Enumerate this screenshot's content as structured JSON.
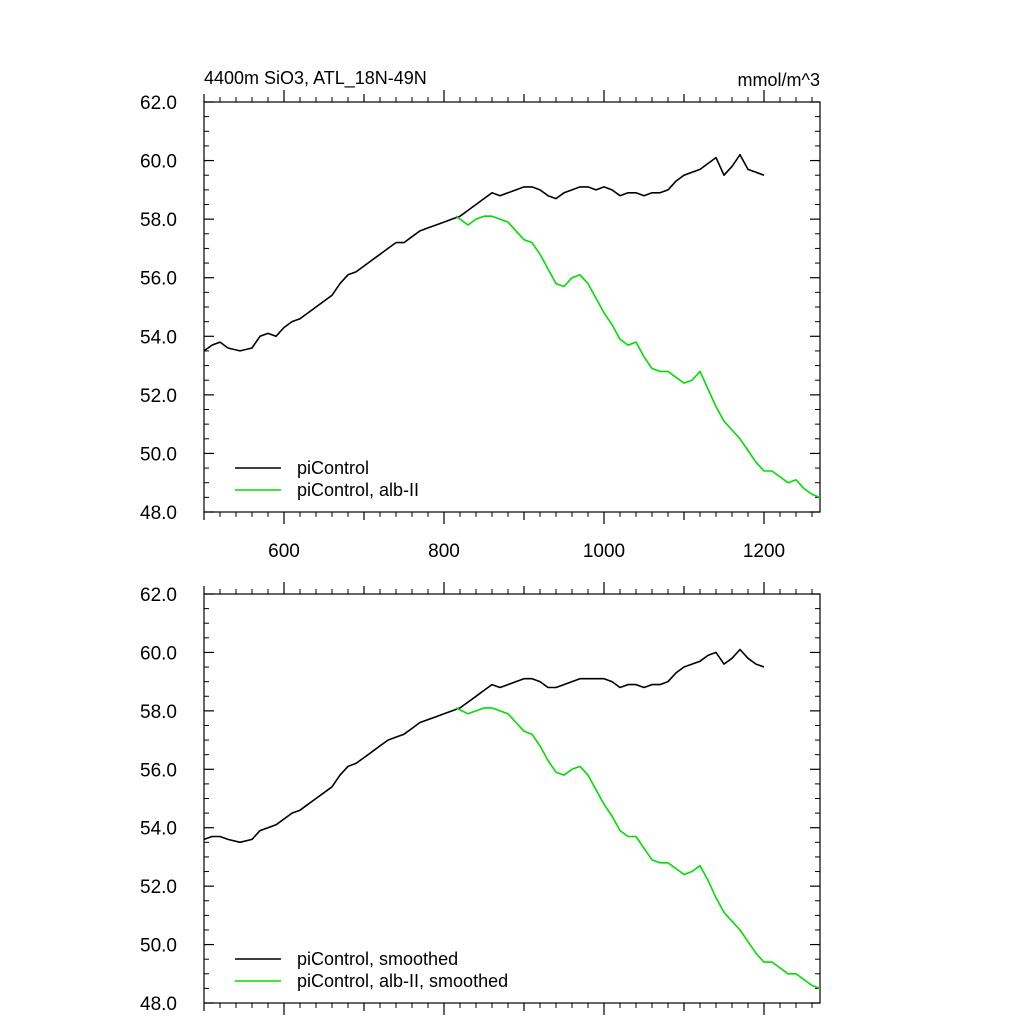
{
  "figure": {
    "title_left": "4400m SiO3, ATL_18N-49N",
    "title_right": "mmol/m^3"
  },
  "chart_data": [
    {
      "type": "line",
      "xlim": [
        500,
        1270
      ],
      "ylim": [
        48,
        62
      ],
      "x_ticks": [
        600,
        800,
        1000,
        1200
      ],
      "x_tick_labels": [
        "600",
        "800",
        "1000",
        "1200"
      ],
      "y_ticks": [
        48,
        50,
        52,
        54,
        56,
        58,
        60,
        62
      ],
      "y_tick_labels": [
        "48.0",
        "50.0",
        "52.0",
        "54.0",
        "56.0",
        "58.0",
        "60.0",
        "62.0"
      ],
      "legend_position": "bottom-left",
      "series": [
        {
          "name": "piControl",
          "color": "#000000",
          "x": [
            500,
            510,
            520,
            530,
            545,
            560,
            570,
            580,
            590,
            600,
            610,
            620,
            630,
            640,
            650,
            660,
            670,
            680,
            690,
            700,
            710,
            720,
            730,
            740,
            750,
            760,
            770,
            780,
            790,
            800,
            810,
            820,
            830,
            840,
            850,
            860,
            870,
            880,
            890,
            900,
            910,
            920,
            930,
            940,
            950,
            960,
            970,
            980,
            990,
            1000,
            1010,
            1020,
            1030,
            1040,
            1050,
            1060,
            1070,
            1080,
            1090,
            1100,
            1110,
            1120,
            1130,
            1140,
            1150,
            1160,
            1170,
            1180,
            1190,
            1200
          ],
          "values": [
            53.5,
            53.7,
            53.8,
            53.6,
            53.5,
            53.6,
            54.0,
            54.1,
            54.0,
            54.3,
            54.5,
            54.6,
            54.8,
            55.0,
            55.2,
            55.4,
            55.8,
            56.1,
            56.2,
            56.4,
            56.6,
            56.8,
            57.0,
            57.2,
            57.2,
            57.4,
            57.6,
            57.7,
            57.8,
            57.9,
            58.0,
            58.1,
            58.3,
            58.5,
            58.7,
            58.9,
            58.8,
            58.9,
            59.0,
            59.1,
            59.1,
            59.0,
            58.8,
            58.7,
            58.9,
            59.0,
            59.1,
            59.1,
            59.0,
            59.1,
            59.0,
            58.8,
            58.9,
            58.9,
            58.8,
            58.9,
            58.9,
            59.0,
            59.3,
            59.5,
            59.6,
            59.7,
            59.9,
            60.1,
            59.5,
            59.8,
            60.2,
            59.7,
            59.6,
            59.5
          ]
        },
        {
          "name": "piControl, alb-II",
          "color": "#00dd00",
          "x": [
            815,
            830,
            840,
            850,
            860,
            870,
            880,
            890,
            900,
            910,
            920,
            930,
            940,
            950,
            960,
            970,
            980,
            990,
            1000,
            1010,
            1020,
            1030,
            1040,
            1050,
            1060,
            1070,
            1080,
            1090,
            1100,
            1110,
            1120,
            1130,
            1140,
            1150,
            1160,
            1170,
            1180,
            1190,
            1200,
            1210,
            1220,
            1230,
            1240,
            1250,
            1260,
            1270
          ],
          "values": [
            58.1,
            57.8,
            58.0,
            58.1,
            58.1,
            58.0,
            57.9,
            57.6,
            57.3,
            57.2,
            56.8,
            56.3,
            55.8,
            55.7,
            56.0,
            56.1,
            55.8,
            55.3,
            54.8,
            54.4,
            53.9,
            53.7,
            53.8,
            53.3,
            52.9,
            52.8,
            52.8,
            52.6,
            52.4,
            52.5,
            52.8,
            52.2,
            51.6,
            51.1,
            50.8,
            50.5,
            50.1,
            49.7,
            49.4,
            49.4,
            49.2,
            49.0,
            49.1,
            48.8,
            48.6,
            48.5
          ]
        }
      ]
    },
    {
      "type": "line",
      "xlim": [
        500,
        1270
      ],
      "ylim": [
        48,
        62
      ],
      "x_ticks": [
        600,
        800,
        1000,
        1200
      ],
      "x_tick_labels": [],
      "y_ticks": [
        48,
        50,
        52,
        54,
        56,
        58,
        60,
        62
      ],
      "y_tick_labels": [
        "48.0",
        "50.0",
        "52.0",
        "54.0",
        "56.0",
        "58.0",
        "60.0",
        "62.0"
      ],
      "legend_position": "bottom-left",
      "series": [
        {
          "name": "piControl, smoothed",
          "color": "#000000",
          "x": [
            500,
            510,
            520,
            530,
            545,
            560,
            570,
            580,
            590,
            600,
            610,
            620,
            630,
            640,
            650,
            660,
            670,
            680,
            690,
            700,
            710,
            720,
            730,
            740,
            750,
            760,
            770,
            780,
            790,
            800,
            810,
            820,
            830,
            840,
            850,
            860,
            870,
            880,
            890,
            900,
            910,
            920,
            930,
            940,
            950,
            960,
            970,
            980,
            990,
            1000,
            1010,
            1020,
            1030,
            1040,
            1050,
            1060,
            1070,
            1080,
            1090,
            1100,
            1110,
            1120,
            1130,
            1140,
            1150,
            1160,
            1170,
            1180,
            1190,
            1200
          ],
          "values": [
            53.6,
            53.7,
            53.7,
            53.6,
            53.5,
            53.6,
            53.9,
            54.0,
            54.1,
            54.3,
            54.5,
            54.6,
            54.8,
            55.0,
            55.2,
            55.4,
            55.8,
            56.1,
            56.2,
            56.4,
            56.6,
            56.8,
            57.0,
            57.1,
            57.2,
            57.4,
            57.6,
            57.7,
            57.8,
            57.9,
            58.0,
            58.1,
            58.3,
            58.5,
            58.7,
            58.9,
            58.8,
            58.9,
            59.0,
            59.1,
            59.1,
            59.0,
            58.8,
            58.8,
            58.9,
            59.0,
            59.1,
            59.1,
            59.1,
            59.1,
            59.0,
            58.8,
            58.9,
            58.9,
            58.8,
            58.9,
            58.9,
            59.0,
            59.3,
            59.5,
            59.6,
            59.7,
            59.9,
            60.0,
            59.6,
            59.8,
            60.1,
            59.8,
            59.6,
            59.5
          ]
        },
        {
          "name": "piControl, alb-II, smoothed",
          "color": "#00dd00",
          "x": [
            815,
            830,
            840,
            850,
            860,
            870,
            880,
            890,
            900,
            910,
            920,
            930,
            940,
            950,
            960,
            970,
            980,
            990,
            1000,
            1010,
            1020,
            1030,
            1040,
            1050,
            1060,
            1070,
            1080,
            1090,
            1100,
            1110,
            1120,
            1130,
            1140,
            1150,
            1160,
            1170,
            1180,
            1190,
            1200,
            1210,
            1220,
            1230,
            1240,
            1250,
            1260,
            1270
          ],
          "values": [
            58.1,
            57.9,
            58.0,
            58.1,
            58.1,
            58.0,
            57.9,
            57.6,
            57.3,
            57.2,
            56.8,
            56.3,
            55.9,
            55.8,
            56.0,
            56.1,
            55.8,
            55.3,
            54.8,
            54.4,
            53.9,
            53.7,
            53.7,
            53.3,
            52.9,
            52.8,
            52.8,
            52.6,
            52.4,
            52.5,
            52.7,
            52.2,
            51.6,
            51.1,
            50.8,
            50.5,
            50.1,
            49.7,
            49.4,
            49.4,
            49.2,
            49.0,
            49.0,
            48.8,
            48.6,
            48.5
          ]
        }
      ]
    }
  ]
}
